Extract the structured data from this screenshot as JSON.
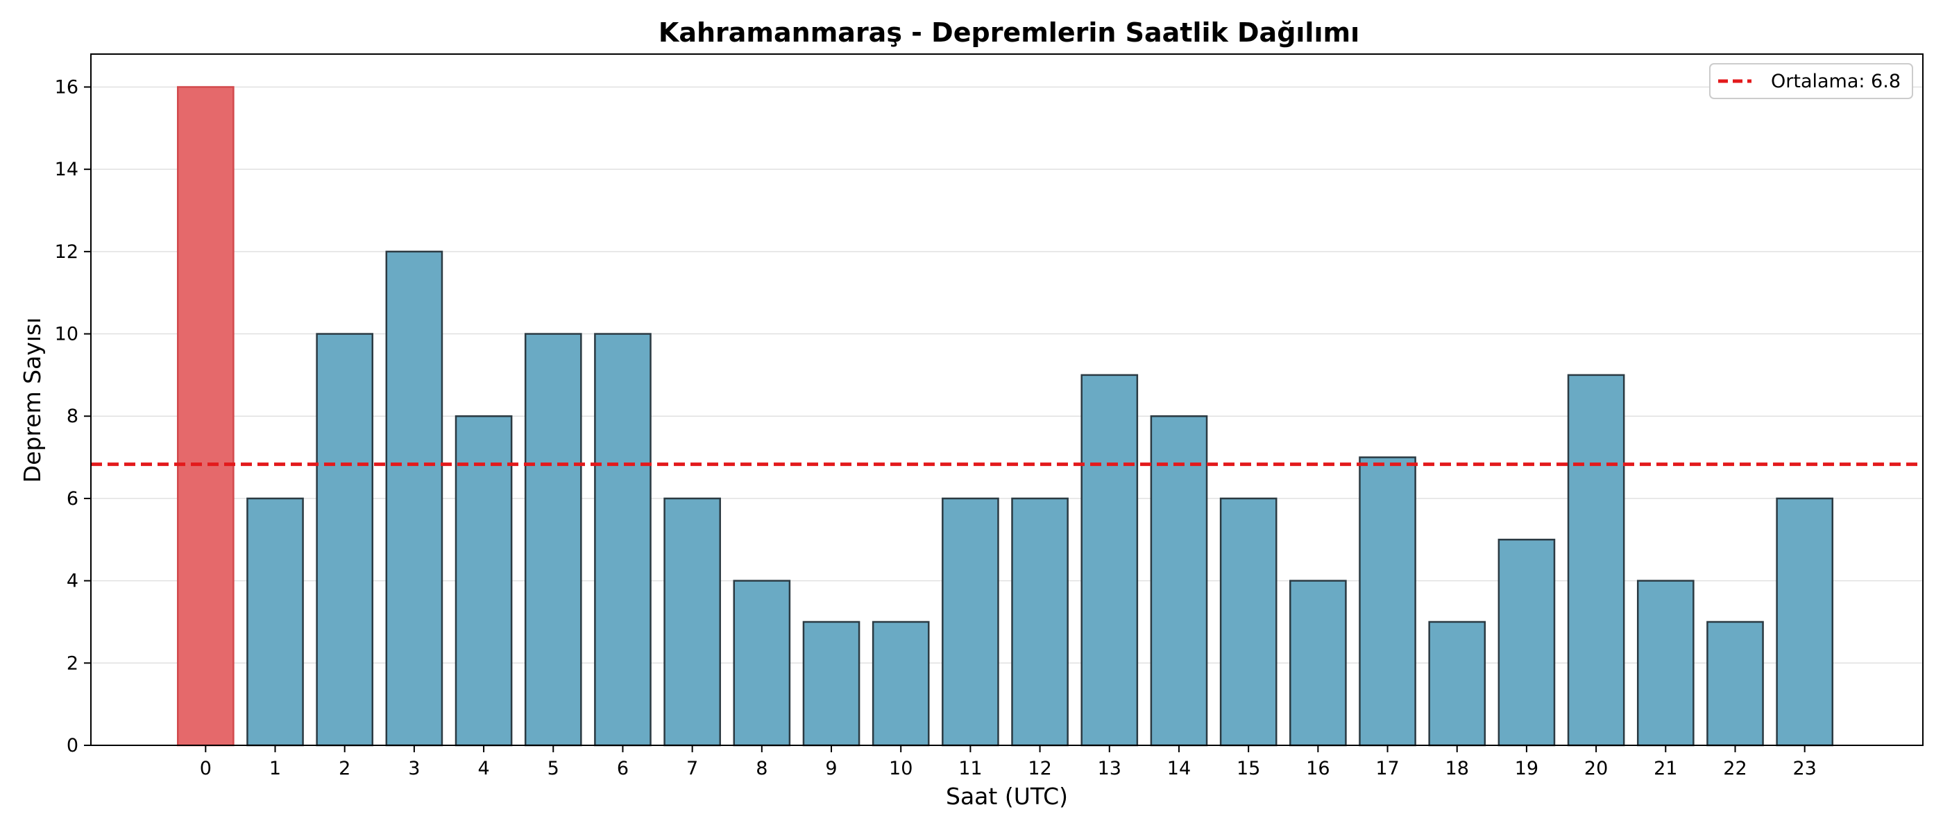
{
  "chart_data": {
    "type": "bar",
    "title": "Kahramanmaraş - Depremlerin Saatlik Dağılımı",
    "xlabel": "Saat (UTC)",
    "ylabel": "Deprem Sayısı",
    "categories": [
      "0",
      "1",
      "2",
      "3",
      "4",
      "5",
      "6",
      "7",
      "8",
      "9",
      "10",
      "11",
      "12",
      "13",
      "14",
      "15",
      "16",
      "17",
      "18",
      "19",
      "20",
      "21",
      "22",
      "23"
    ],
    "values": [
      16,
      6,
      10,
      12,
      8,
      10,
      10,
      6,
      4,
      3,
      3,
      6,
      6,
      9,
      8,
      6,
      4,
      7,
      3,
      5,
      9,
      4,
      3,
      6
    ],
    "highlight_index": 0,
    "ylim": [
      0,
      16.8
    ],
    "yticks": [
      0,
      2,
      4,
      6,
      8,
      10,
      12,
      14,
      16
    ],
    "grid": "y",
    "mean_line": {
      "value": 6.83,
      "label": "Ortalama: 6.8",
      "color": "#e31a1c",
      "style": "dashed"
    },
    "legend": {
      "position": "top-right",
      "entries": [
        "Ortalama: 6.8"
      ]
    },
    "colors": {
      "bar": "#6aaac4",
      "highlight": "#e5696b",
      "edge": "#2b3a42",
      "mean": "#e31a1c"
    }
  }
}
